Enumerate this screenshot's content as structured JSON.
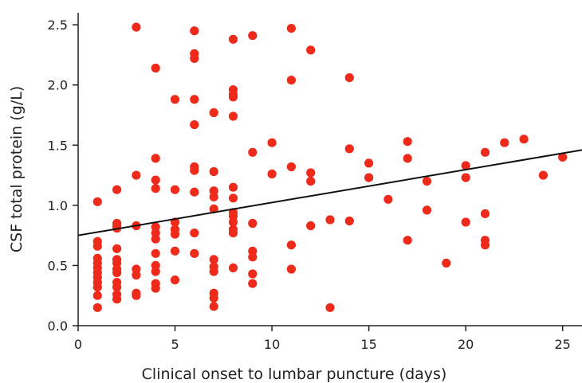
{
  "chart_data": {
    "type": "scatter",
    "xlabel": "Clinical onset to lumbar puncture (days)",
    "ylabel": "CSF total protein (g/L)",
    "xlim": [
      0,
      26
    ],
    "ylim": [
      0,
      2.6
    ],
    "xticks": [
      0,
      5,
      10,
      15,
      20,
      25
    ],
    "xtick_labels": [
      "0",
      "5",
      "10",
      "15",
      "20",
      "25"
    ],
    "yticks": [
      0.0,
      0.5,
      1.0,
      1.5,
      2.0,
      2.5
    ],
    "ytick_labels": [
      "0.0",
      "0.5",
      "1.0",
      "1.5",
      "2.0",
      "2.5"
    ],
    "grid": false,
    "point_color": "#ee2a1b",
    "line_color": "#111111",
    "trend_line": {
      "x": [
        0,
        26
      ],
      "y": [
        0.75,
        1.46
      ]
    },
    "points": [
      [
        1,
        1.03
      ],
      [
        1,
        0.7
      ],
      [
        1,
        0.66
      ],
      [
        1,
        0.56
      ],
      [
        1,
        0.52
      ],
      [
        1,
        0.48
      ],
      [
        1,
        0.44
      ],
      [
        1,
        0.4
      ],
      [
        1,
        0.36
      ],
      [
        1,
        0.32
      ],
      [
        1,
        0.25
      ],
      [
        1,
        0.15
      ],
      [
        2,
        1.13
      ],
      [
        2,
        0.85
      ],
      [
        2,
        0.83
      ],
      [
        2,
        0.81
      ],
      [
        2,
        0.64
      ],
      [
        2,
        0.55
      ],
      [
        2,
        0.52
      ],
      [
        2,
        0.47
      ],
      [
        2,
        0.44
      ],
      [
        2,
        0.36
      ],
      [
        2,
        0.32
      ],
      [
        2,
        0.26
      ],
      [
        2,
        0.22
      ],
      [
        3,
        2.48
      ],
      [
        3,
        1.25
      ],
      [
        3,
        0.83
      ],
      [
        3,
        0.47
      ],
      [
        3,
        0.42
      ],
      [
        3,
        0.27
      ],
      [
        3,
        0.25
      ],
      [
        4,
        2.14
      ],
      [
        4,
        1.39
      ],
      [
        4,
        1.21
      ],
      [
        4,
        1.14
      ],
      [
        4,
        0.82
      ],
      [
        4,
        0.77
      ],
      [
        4,
        0.72
      ],
      [
        4,
        0.6
      ],
      [
        4,
        0.5
      ],
      [
        4,
        0.45
      ],
      [
        4,
        0.35
      ],
      [
        4,
        0.31
      ],
      [
        5,
        1.88
      ],
      [
        5,
        1.13
      ],
      [
        5,
        0.86
      ],
      [
        5,
        0.8
      ],
      [
        5,
        0.76
      ],
      [
        5,
        0.62
      ],
      [
        5,
        0.38
      ],
      [
        6,
        2.45
      ],
      [
        6,
        2.26
      ],
      [
        6,
        2.22
      ],
      [
        6,
        1.88
      ],
      [
        6,
        1.67
      ],
      [
        6,
        1.32
      ],
      [
        6,
        1.29
      ],
      [
        6,
        1.11
      ],
      [
        6,
        0.77
      ],
      [
        6,
        0.6
      ],
      [
        7,
        1.77
      ],
      [
        7,
        1.28
      ],
      [
        7,
        1.12
      ],
      [
        7,
        1.07
      ],
      [
        7,
        0.97
      ],
      [
        7,
        0.55
      ],
      [
        7,
        0.49
      ],
      [
        7,
        0.45
      ],
      [
        7,
        0.27
      ],
      [
        7,
        0.23
      ],
      [
        7,
        0.16
      ],
      [
        8,
        2.38
      ],
      [
        8,
        1.96
      ],
      [
        8,
        1.92
      ],
      [
        8,
        1.9
      ],
      [
        8,
        1.74
      ],
      [
        8,
        1.15
      ],
      [
        8,
        1.06
      ],
      [
        8,
        0.94
      ],
      [
        8,
        0.91
      ],
      [
        8,
        0.86
      ],
      [
        8,
        0.8
      ],
      [
        8,
        0.77
      ],
      [
        8,
        0.48
      ],
      [
        9,
        2.41
      ],
      [
        9,
        1.44
      ],
      [
        9,
        0.85
      ],
      [
        9,
        0.62
      ],
      [
        9,
        0.57
      ],
      [
        9,
        0.43
      ],
      [
        9,
        0.35
      ],
      [
        10,
        1.52
      ],
      [
        10,
        1.26
      ],
      [
        11,
        2.47
      ],
      [
        11,
        2.04
      ],
      [
        11,
        1.32
      ],
      [
        11,
        0.67
      ],
      [
        11,
        0.47
      ],
      [
        12,
        2.29
      ],
      [
        12,
        1.27
      ],
      [
        12,
        1.2
      ],
      [
        12,
        0.83
      ],
      [
        13,
        0.88
      ],
      [
        13,
        0.15
      ],
      [
        14,
        2.06
      ],
      [
        14,
        1.47
      ],
      [
        14,
        0.87
      ],
      [
        15,
        1.35
      ],
      [
        15,
        1.23
      ],
      [
        16,
        1.05
      ],
      [
        17,
        1.53
      ],
      [
        17,
        1.39
      ],
      [
        17,
        0.71
      ],
      [
        18,
        1.2
      ],
      [
        18,
        0.96
      ],
      [
        19,
        0.52
      ],
      [
        20,
        1.33
      ],
      [
        20,
        1.23
      ],
      [
        20,
        0.86
      ],
      [
        21,
        1.44
      ],
      [
        21,
        0.93
      ],
      [
        21,
        0.71
      ],
      [
        21,
        0.67
      ],
      [
        22,
        1.52
      ],
      [
        23,
        1.55
      ],
      [
        24,
        1.25
      ],
      [
        25,
        1.4
      ]
    ]
  }
}
